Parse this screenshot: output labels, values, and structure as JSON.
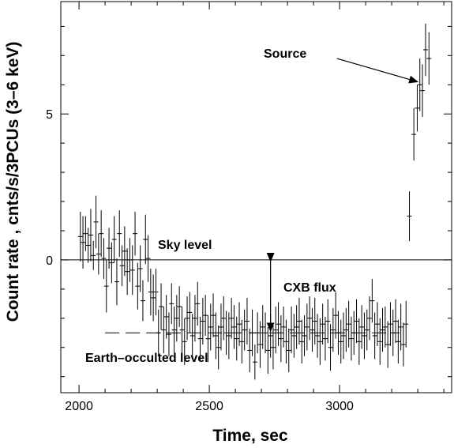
{
  "chart_data": {
    "type": "scatter",
    "title": "",
    "xlabel": "Time, sec",
    "ylabel": "Count rate , cnts/s/3PCUs (3–6 keV)",
    "xlim": [
      1930,
      3430
    ],
    "ylim": [
      -4.55,
      8.85
    ],
    "x_ticks": [
      2000,
      2500,
      3000
    ],
    "x_tick_labels": [
      "2000",
      "2500",
      "3000"
    ],
    "y_ticks": [
      0,
      5
    ],
    "y_tick_labels": [
      "0",
      "5"
    ],
    "grid": false,
    "legend": "none",
    "sky_level": 0,
    "earth_occulted_level": -2.5,
    "earth_occulted_level_x": [
      2100,
      3230
    ],
    "annotations": {
      "source": "Source",
      "sky_level": "Sky level",
      "cxb_flux": "CXB flux",
      "earth_occulted_level": "Earth–occulted level"
    },
    "cxb_arrow_x": 2735,
    "source_arrow": {
      "from_x": 2990,
      "from_y": 6.9,
      "to_x": 3300,
      "to_y": 6.1
    },
    "points": [
      {
        "x": 2005,
        "y": 0.8,
        "err": 0.85
      },
      {
        "x": 2015,
        "y": 0.6,
        "err": 0.9
      },
      {
        "x": 2025,
        "y": 0.9,
        "err": 0.6
      },
      {
        "x": 2035,
        "y": 0.5,
        "err": 0.6
      },
      {
        "x": 2045,
        "y": 0.85,
        "err": 0.9
      },
      {
        "x": 2055,
        "y": 0.15,
        "err": 0.5
      },
      {
        "x": 2065,
        "y": 1.3,
        "err": 0.9
      },
      {
        "x": 2075,
        "y": 0.2,
        "err": 0.7
      },
      {
        "x": 2085,
        "y": 0.9,
        "err": 0.8
      },
      {
        "x": 2095,
        "y": 0.05,
        "err": 0.7
      },
      {
        "x": 2105,
        "y": -0.9,
        "err": 0.9
      },
      {
        "x": 2115,
        "y": 0.4,
        "err": 0.7
      },
      {
        "x": 2125,
        "y": -0.1,
        "err": 0.7
      },
      {
        "x": 2135,
        "y": 0.7,
        "err": 0.8
      },
      {
        "x": 2145,
        "y": -0.75,
        "err": 0.8
      },
      {
        "x": 2155,
        "y": 0.9,
        "err": 0.8
      },
      {
        "x": 2165,
        "y": -0.2,
        "err": 0.7
      },
      {
        "x": 2175,
        "y": 0.3,
        "err": 0.85
      },
      {
        "x": 2185,
        "y": -0.4,
        "err": 0.8
      },
      {
        "x": 2195,
        "y": 0.0,
        "err": 0.75
      },
      {
        "x": 2205,
        "y": -0.35,
        "err": 0.85
      },
      {
        "x": 2215,
        "y": 0.9,
        "err": 0.75
      },
      {
        "x": 2225,
        "y": -0.9,
        "err": 0.8
      },
      {
        "x": 2235,
        "y": -0.3,
        "err": 0.8
      },
      {
        "x": 2245,
        "y": -1.4,
        "err": 0.7
      },
      {
        "x": 2255,
        "y": 0.7,
        "err": 0.85
      },
      {
        "x": 2265,
        "y": 0.05,
        "err": 0.8
      },
      {
        "x": 2275,
        "y": -1.1,
        "err": 0.8
      },
      {
        "x": 2285,
        "y": -1.3,
        "err": 0.8
      },
      {
        "x": 2295,
        "y": -1.1,
        "err": 0.8
      },
      {
        "x": 2305,
        "y": -2.5,
        "err": 0.8
      },
      {
        "x": 2315,
        "y": -1.6,
        "err": 0.8
      },
      {
        "x": 2325,
        "y": -2.4,
        "err": 0.8
      },
      {
        "x": 2335,
        "y": -1.95,
        "err": 0.75
      },
      {
        "x": 2345,
        "y": -2.55,
        "err": 0.75
      },
      {
        "x": 2355,
        "y": -1.5,
        "err": 0.7
      },
      {
        "x": 2365,
        "y": -2.4,
        "err": 0.8
      },
      {
        "x": 2375,
        "y": -2.0,
        "err": 0.8
      },
      {
        "x": 2385,
        "y": -1.6,
        "err": 0.7
      },
      {
        "x": 2395,
        "y": -2.4,
        "err": 0.8
      },
      {
        "x": 2405,
        "y": -2.8,
        "err": 0.8
      },
      {
        "x": 2415,
        "y": -2.0,
        "err": 0.75
      },
      {
        "x": 2425,
        "y": -1.8,
        "err": 0.7
      },
      {
        "x": 2435,
        "y": -2.6,
        "err": 0.75
      },
      {
        "x": 2445,
        "y": -2.0,
        "err": 0.8
      },
      {
        "x": 2455,
        "y": -1.5,
        "err": 0.75
      },
      {
        "x": 2465,
        "y": -2.7,
        "err": 0.75
      },
      {
        "x": 2475,
        "y": -2.1,
        "err": 0.8
      },
      {
        "x": 2485,
        "y": -1.9,
        "err": 0.7
      },
      {
        "x": 2495,
        "y": -2.7,
        "err": 0.8
      },
      {
        "x": 2505,
        "y": -2.3,
        "err": 0.8
      },
      {
        "x": 2515,
        "y": -1.9,
        "err": 0.75
      },
      {
        "x": 2525,
        "y": -2.6,
        "err": 0.8
      },
      {
        "x": 2535,
        "y": -3.0,
        "err": 0.75
      },
      {
        "x": 2545,
        "y": -2.3,
        "err": 0.8
      },
      {
        "x": 2555,
        "y": -2.0,
        "err": 0.75
      },
      {
        "x": 2565,
        "y": -2.5,
        "err": 0.75
      },
      {
        "x": 2575,
        "y": -2.6,
        "err": 0.8
      },
      {
        "x": 2585,
        "y": -2.0,
        "err": 0.7
      },
      {
        "x": 2595,
        "y": -2.3,
        "err": 0.75
      },
      {
        "x": 2605,
        "y": -2.7,
        "err": 0.75
      },
      {
        "x": 2615,
        "y": -2.2,
        "err": 0.75
      },
      {
        "x": 2625,
        "y": -2.8,
        "err": 0.75
      },
      {
        "x": 2635,
        "y": -2.4,
        "err": 0.7
      },
      {
        "x": 2645,
        "y": -2.1,
        "err": 0.8
      },
      {
        "x": 2655,
        "y": -3.1,
        "err": 0.75
      },
      {
        "x": 2665,
        "y": -2.5,
        "err": 0.8
      },
      {
        "x": 2675,
        "y": -3.5,
        "err": 0.6
      },
      {
        "x": 2685,
        "y": -2.5,
        "err": 0.7
      },
      {
        "x": 2695,
        "y": -2.9,
        "err": 0.8
      },
      {
        "x": 2705,
        "y": -2.3,
        "err": 0.75
      },
      {
        "x": 2715,
        "y": -2.5,
        "err": 0.7
      },
      {
        "x": 2725,
        "y": -3.1,
        "err": 0.8
      },
      {
        "x": 2735,
        "y": -2.6,
        "err": 0.75
      },
      {
        "x": 2745,
        "y": -3.0,
        "err": 0.75
      },
      {
        "x": 2755,
        "y": -2.4,
        "err": 0.8
      },
      {
        "x": 2765,
        "y": -2.2,
        "err": 0.75
      },
      {
        "x": 2775,
        "y": -2.7,
        "err": 0.8
      },
      {
        "x": 2785,
        "y": -2.3,
        "err": 0.7
      },
      {
        "x": 2795,
        "y": -2.8,
        "err": 0.75
      },
      {
        "x": 2805,
        "y": -3.1,
        "err": 0.75
      },
      {
        "x": 2815,
        "y": -2.4,
        "err": 0.8
      },
      {
        "x": 2825,
        "y": -2.6,
        "err": 0.75
      },
      {
        "x": 2835,
        "y": -2.3,
        "err": 0.75
      },
      {
        "x": 2845,
        "y": -2.1,
        "err": 0.8
      },
      {
        "x": 2855,
        "y": -2.8,
        "err": 0.75
      },
      {
        "x": 2865,
        "y": -2.6,
        "err": 0.7
      },
      {
        "x": 2875,
        "y": -2.3,
        "err": 0.8
      },
      {
        "x": 2885,
        "y": -2.0,
        "err": 0.75
      },
      {
        "x": 2895,
        "y": -2.4,
        "err": 0.75
      },
      {
        "x": 2905,
        "y": -2.1,
        "err": 0.8
      },
      {
        "x": 2915,
        "y": -2.6,
        "err": 0.75
      },
      {
        "x": 2925,
        "y": -2.8,
        "err": 0.8
      },
      {
        "x": 2935,
        "y": -2.2,
        "err": 0.7
      },
      {
        "x": 2945,
        "y": -2.7,
        "err": 0.75
      },
      {
        "x": 2955,
        "y": -2.1,
        "err": 0.75
      },
      {
        "x": 2965,
        "y": -3.0,
        "err": 0.8
      },
      {
        "x": 2975,
        "y": -2.4,
        "err": 0.75
      },
      {
        "x": 2985,
        "y": -1.9,
        "err": 0.8
      },
      {
        "x": 2995,
        "y": -2.5,
        "err": 0.75
      },
      {
        "x": 3005,
        "y": -2.8,
        "err": 0.75
      },
      {
        "x": 3015,
        "y": -2.6,
        "err": 0.8
      },
      {
        "x": 3025,
        "y": -2.4,
        "err": 0.75
      },
      {
        "x": 3035,
        "y": -2.2,
        "err": 0.8
      },
      {
        "x": 3045,
        "y": -2.7,
        "err": 0.75
      },
      {
        "x": 3055,
        "y": -2.5,
        "err": 0.75
      },
      {
        "x": 3065,
        "y": -2.1,
        "err": 0.75
      },
      {
        "x": 3075,
        "y": -2.8,
        "err": 0.8
      },
      {
        "x": 3085,
        "y": -2.3,
        "err": 0.75
      },
      {
        "x": 3095,
        "y": -2.6,
        "err": 0.8
      },
      {
        "x": 3105,
        "y": -2.4,
        "err": 0.7
      },
      {
        "x": 3115,
        "y": -2.0,
        "err": 0.75
      },
      {
        "x": 3125,
        "y": -1.4,
        "err": 0.75
      },
      {
        "x": 3135,
        "y": -2.6,
        "err": 0.8
      },
      {
        "x": 3145,
        "y": -2.2,
        "err": 0.75
      },
      {
        "x": 3155,
        "y": -2.8,
        "err": 0.8
      },
      {
        "x": 3165,
        "y": -2.4,
        "err": 0.75
      },
      {
        "x": 3175,
        "y": -2.3,
        "err": 0.7
      },
      {
        "x": 3185,
        "y": -2.9,
        "err": 0.8
      },
      {
        "x": 3195,
        "y": -2.2,
        "err": 0.75
      },
      {
        "x": 3205,
        "y": -2.5,
        "err": 0.8
      },
      {
        "x": 3215,
        "y": -2.1,
        "err": 0.75
      },
      {
        "x": 3225,
        "y": -2.8,
        "err": 0.75
      },
      {
        "x": 3235,
        "y": -2.3,
        "err": 0.8
      },
      {
        "x": 3245,
        "y": -2.9,
        "err": 0.75
      },
      {
        "x": 3255,
        "y": -2.2,
        "err": 0.8
      },
      {
        "x": 3268,
        "y": 1.5,
        "err": 0.85
      },
      {
        "x": 3285,
        "y": 4.3,
        "err": 0.9
      },
      {
        "x": 3298,
        "y": 5.2,
        "err": 0.8
      },
      {
        "x": 3308,
        "y": 6.0,
        "err": 0.9
      },
      {
        "x": 3318,
        "y": 5.8,
        "err": 0.9
      },
      {
        "x": 3330,
        "y": 7.2,
        "err": 0.9
      },
      {
        "x": 3343,
        "y": 6.9,
        "err": 0.9
      }
    ]
  }
}
